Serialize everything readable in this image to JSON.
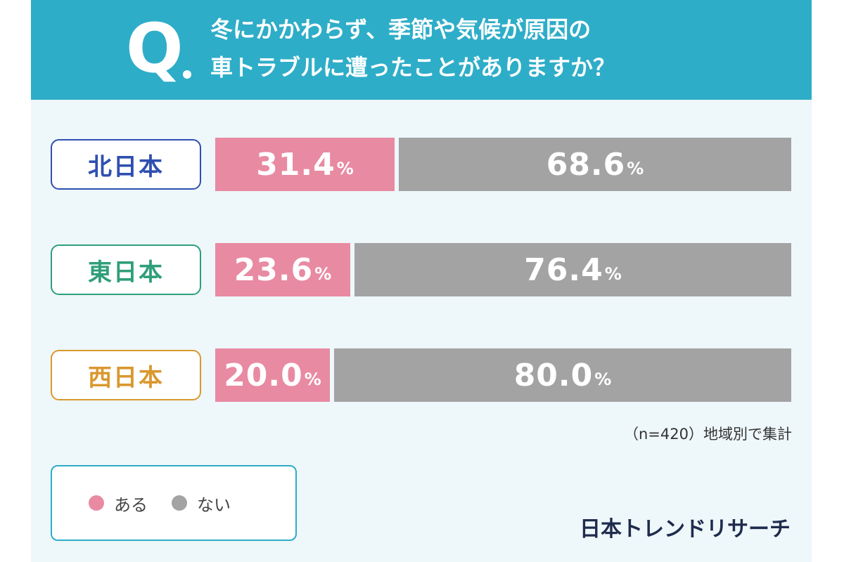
{
  "question": {
    "mark": "Q",
    "line1": "冬にかかわらず、季節や気候が原因の",
    "line2": "車トラブルに遭ったことがありますか？"
  },
  "colors": {
    "header": "#2eadc8",
    "yes": "#e88aa2",
    "no": "#a3a3a3",
    "north": "#2f4fb0",
    "east": "#2f9e7a",
    "west": "#d9982f"
  },
  "chart_data": {
    "type": "bar",
    "stacked": true,
    "orientation": "horizontal",
    "categories": [
      "北日本",
      "東日本",
      "西日本"
    ],
    "series": [
      {
        "name": "ある",
        "values": [
          31.4,
          23.6,
          20.0
        ]
      },
      {
        "name": "ない",
        "values": [
          68.6,
          76.4,
          80.0
        ]
      }
    ],
    "value_labels": [
      [
        "31.4",
        "68.6"
      ],
      [
        "23.6",
        "76.4"
      ],
      [
        "20.0",
        "80.0"
      ]
    ],
    "unit": "%",
    "xlim": [
      0,
      100
    ],
    "grid": false,
    "legend": "bottom-left"
  },
  "note": "（n=420）地域別で集計",
  "legend": {
    "yes_label": "ある",
    "no_label": "ない"
  },
  "brand": "日本トレンドリサーチ"
}
